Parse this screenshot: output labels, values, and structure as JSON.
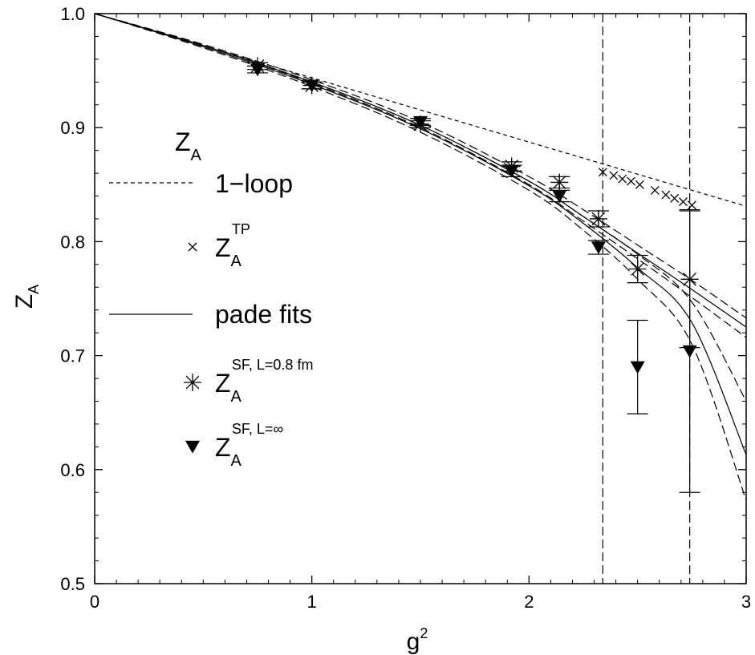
{
  "chart_data": {
    "type": "scatter",
    "title": "",
    "xlabel": "g",
    "xlabel_sup": "2",
    "ylabel": "Z",
    "ylabel_sub": "A",
    "xlim": [
      0,
      3
    ],
    "ylim": [
      0.5,
      1.0
    ],
    "xticks": [
      0,
      1,
      2,
      3
    ],
    "xtick_labels": [
      "0",
      "1",
      "2",
      "3"
    ],
    "yticks": [
      0.5,
      0.6,
      0.7,
      0.8,
      0.9,
      1.0
    ],
    "ytick_labels": [
      "0.5",
      "0.6",
      "0.7",
      "0.8",
      "0.9",
      "1.0"
    ],
    "grid": false,
    "legend_placement": "left",
    "legend": {
      "heading_main": "Z",
      "heading_sub": "A",
      "entries": [
        {
          "key": "one_loop",
          "text": "1−loop",
          "sub": "",
          "sup": ""
        },
        {
          "key": "tp",
          "text": "Z",
          "sub": "A",
          "sup": "TP"
        },
        {
          "key": "pade",
          "text": "pade fits",
          "sub": "",
          "sup": ""
        },
        {
          "key": "sf_08",
          "text": "Z",
          "sub": "A",
          "sup": "SF, L=0.8 fm"
        },
        {
          "key": "sf_inf",
          "text": "Z",
          "sub": "A",
          "sup": "SF, L=∞"
        }
      ]
    },
    "one_loop": {
      "style": "short-dashed",
      "x": [
        0,
        3
      ],
      "y": [
        1.0,
        0.831
      ]
    },
    "vertical_lines": {
      "style": "long-dashed",
      "x": [
        2.34,
        2.74
      ]
    },
    "series": [
      {
        "key": "tp",
        "marker": "x",
        "x": [
          2.34,
          2.39,
          2.43,
          2.47,
          2.51,
          2.58,
          2.63,
          2.67,
          2.71,
          2.75
        ],
        "y": [
          0.861,
          0.858,
          0.855,
          0.853,
          0.85,
          0.845,
          0.841,
          0.838,
          0.835,
          0.832
        ]
      },
      {
        "key": "sf_08",
        "marker": "asterisk",
        "x": [
          0.75,
          1.0,
          1.5,
          1.92,
          2.14,
          2.32,
          2.5,
          2.74
        ],
        "y": [
          0.954,
          0.937,
          0.903,
          0.866,
          0.852,
          0.82,
          0.776,
          0.767
        ],
        "yerr": [
          0.003,
          0.003,
          0.003,
          0.004,
          0.005,
          0.007,
          0.012,
          0.06
        ]
      },
      {
        "key": "sf_inf",
        "marker": "triangle-down",
        "x": [
          0.75,
          1.0,
          1.5,
          1.92,
          2.14,
          2.32,
          2.5,
          2.74
        ],
        "y": [
          0.951,
          0.937,
          0.905,
          0.862,
          0.84,
          0.795,
          0.69,
          0.704
        ],
        "yerr": [
          0.003,
          0.003,
          0.003,
          0.005,
          0.005,
          0.006,
          0.041,
          0.124
        ]
      }
    ],
    "pade_fits": [
      {
        "style": "solid",
        "x": [
          0,
          0.5,
          1.0,
          1.5,
          2.0,
          2.25,
          2.5,
          2.75,
          3.0
        ],
        "y": [
          1.0,
          0.972,
          0.94,
          0.902,
          0.853,
          0.822,
          0.79,
          0.758,
          0.725
        ]
      },
      {
        "style": "long-dashed",
        "x": [
          0,
          0.5,
          1.0,
          1.5,
          2.0,
          2.25,
          2.5,
          2.75,
          3.0
        ],
        "y": [
          1.0,
          0.973,
          0.942,
          0.905,
          0.857,
          0.828,
          0.797,
          0.766,
          0.733
        ]
      },
      {
        "style": "long-dashed",
        "x": [
          0,
          0.5,
          1.0,
          1.5,
          2.0,
          2.25,
          2.5,
          2.75,
          3.0
        ],
        "y": [
          1.0,
          0.972,
          0.939,
          0.9,
          0.85,
          0.818,
          0.785,
          0.751,
          0.716
        ]
      },
      {
        "style": "solid",
        "x": [
          0,
          0.5,
          1.0,
          1.5,
          2.0,
          2.25,
          2.5,
          2.75,
          3.0
        ],
        "y": [
          1.0,
          0.971,
          0.938,
          0.899,
          0.849,
          0.816,
          0.777,
          0.729,
          0.613
        ]
      },
      {
        "style": "long-dashed",
        "x": [
          0,
          0.5,
          1.0,
          1.5,
          2.0,
          2.25,
          2.5,
          2.75,
          3.0
        ],
        "y": [
          1.0,
          0.972,
          0.94,
          0.902,
          0.853,
          0.822,
          0.789,
          0.747,
          0.66
        ]
      },
      {
        "style": "long-dashed",
        "x": [
          0,
          0.5,
          1.0,
          1.5,
          2.0,
          2.25,
          2.5,
          2.75,
          3.0
        ],
        "y": [
          1.0,
          0.97,
          0.936,
          0.896,
          0.845,
          0.81,
          0.767,
          0.71,
          0.573
        ]
      }
    ]
  }
}
